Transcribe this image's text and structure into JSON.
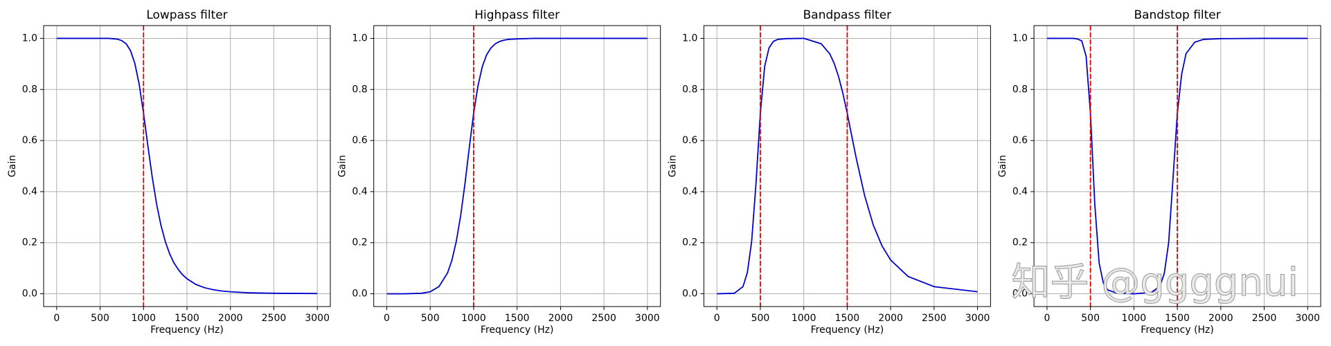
{
  "chart_data": [
    {
      "type": "line",
      "title": "Lowpass filter",
      "xlabel": "Frequency (Hz)",
      "ylabel": "Gain",
      "x": [
        0,
        200,
        400,
        500,
        600,
        700,
        750,
        800,
        850,
        900,
        950,
        1000,
        1050,
        1100,
        1150,
        1200,
        1250,
        1300,
        1350,
        1400,
        1450,
        1500,
        1600,
        1700,
        1800,
        1900,
        2000,
        2200,
        2500,
        3000
      ],
      "series": [
        {
          "color": "#0000cc",
          "values": [
            1,
            1,
            1,
            1,
            1,
            0.997,
            0.991,
            0.979,
            0.952,
            0.902,
            0.82,
            0.707,
            0.579,
            0.457,
            0.352,
            0.269,
            0.205,
            0.157,
            0.121,
            0.095,
            0.074,
            0.059,
            0.037,
            0.024,
            0.016,
            0.011,
            0.008,
            0.004,
            0.002,
            0.001
          ]
        }
      ],
      "cutoffs": [
        1000
      ],
      "cutoff_color": "#e00000",
      "xlim": [
        -150,
        3150
      ],
      "xticks": [
        0,
        500,
        1000,
        1500,
        2000,
        2500,
        3000
      ],
      "ylim": [
        -0.05,
        1.05
      ],
      "yticks": [
        {
          "value": 0,
          "label": "0.0"
        },
        {
          "value": 0.2,
          "label": "0.2"
        },
        {
          "value": 0.4,
          "label": "0.4"
        },
        {
          "value": 0.6,
          "label": "0.6"
        },
        {
          "value": 0.8,
          "label": "0.8"
        },
        {
          "value": 1,
          "label": "1.0"
        }
      ],
      "grid": true
    },
    {
      "type": "line",
      "title": "Highpass filter",
      "xlabel": "Frequency (Hz)",
      "ylabel": "Gain",
      "x": [
        0,
        200,
        400,
        500,
        600,
        700,
        750,
        800,
        850,
        900,
        950,
        1000,
        1050,
        1100,
        1150,
        1200,
        1250,
        1300,
        1350,
        1400,
        1450,
        1500,
        1600,
        1700,
        1800,
        1900,
        2000,
        2200,
        2500,
        3000
      ],
      "series": [
        {
          "color": "#0000cc",
          "values": [
            0,
            0,
            0.002,
            0.008,
            0.028,
            0.082,
            0.132,
            0.205,
            0.305,
            0.431,
            0.573,
            0.707,
            0.815,
            0.89,
            0.936,
            0.963,
            0.979,
            0.988,
            0.993,
            0.996,
            0.997,
            0.998,
            0.999,
            1,
            1,
            1,
            1,
            1,
            1,
            1
          ]
        }
      ],
      "cutoffs": [
        1000
      ],
      "cutoff_color": "#e00000",
      "xlim": [
        -150,
        3150
      ],
      "xticks": [
        0,
        500,
        1000,
        1500,
        2000,
        2500,
        3000
      ],
      "ylim": [
        -0.05,
        1.05
      ],
      "yticks": [
        {
          "value": 0,
          "label": "0.0"
        },
        {
          "value": 0.2,
          "label": "0.2"
        },
        {
          "value": 0.4,
          "label": "0.4"
        },
        {
          "value": 0.6,
          "label": "0.6"
        },
        {
          "value": 0.8,
          "label": "0.8"
        },
        {
          "value": 1,
          "label": "1.0"
        }
      ],
      "grid": true
    },
    {
      "type": "line",
      "title": "Bandpass filter",
      "xlabel": "Frequency (Hz)",
      "ylabel": "Gain",
      "x": [
        0,
        200,
        300,
        350,
        400,
        450,
        500,
        550,
        600,
        650,
        700,
        800,
        1000,
        1200,
        1300,
        1350,
        1400,
        1450,
        1500,
        1550,
        1600,
        1700,
        1800,
        1900,
        2000,
        2200,
        2500,
        3000
      ],
      "series": [
        {
          "color": "#0000cc",
          "values": [
            0,
            0.002,
            0.028,
            0.082,
            0.205,
            0.431,
            0.707,
            0.89,
            0.963,
            0.988,
            0.996,
            0.999,
            1,
            0.979,
            0.939,
            0.902,
            0.851,
            0.785,
            0.707,
            0.622,
            0.537,
            0.385,
            0.269,
            0.188,
            0.132,
            0.068,
            0.028,
            0.008
          ]
        }
      ],
      "cutoffs": [
        500,
        1500
      ],
      "cutoff_color": "#e00000",
      "xlim": [
        -150,
        3150
      ],
      "xticks": [
        0,
        500,
        1000,
        1500,
        2000,
        2500,
        3000
      ],
      "ylim": [
        -0.05,
        1.05
      ],
      "yticks": [
        {
          "value": 0,
          "label": "0.0"
        },
        {
          "value": 0.2,
          "label": "0.2"
        },
        {
          "value": 0.4,
          "label": "0.4"
        },
        {
          "value": 0.6,
          "label": "0.6"
        },
        {
          "value": 0.8,
          "label": "0.8"
        },
        {
          "value": 1,
          "label": "1.0"
        }
      ],
      "grid": true
    },
    {
      "type": "line",
      "title": "Bandstop filter",
      "xlabel": "Frequency (Hz)",
      "ylabel": "Gain",
      "x": [
        0,
        200,
        300,
        350,
        400,
        450,
        500,
        550,
        600,
        650,
        700,
        800,
        1000,
        1200,
        1300,
        1350,
        1400,
        1450,
        1500,
        1550,
        1600,
        1700,
        1800,
        2000,
        2500,
        3000
      ],
      "series": [
        {
          "color": "#0000cc",
          "values": [
            1,
            1,
            1,
            0.998,
            0.99,
            0.93,
            0.707,
            0.35,
            0.12,
            0.04,
            0.015,
            0.003,
            0,
            0.005,
            0.03,
            0.08,
            0.2,
            0.45,
            0.707,
            0.86,
            0.94,
            0.985,
            0.996,
            0.999,
            1,
            1
          ]
        }
      ],
      "cutoffs": [
        500,
        1500
      ],
      "cutoff_color": "#e00000",
      "xlim": [
        -150,
        3150
      ],
      "xticks": [
        0,
        500,
        1000,
        1500,
        2000,
        2500,
        3000
      ],
      "ylim": [
        -0.05,
        1.05
      ],
      "yticks": [
        {
          "value": 0,
          "label": "0.0"
        },
        {
          "value": 0.2,
          "label": "0.2"
        },
        {
          "value": 0.4,
          "label": "0.4"
        },
        {
          "value": 0.6,
          "label": "0.6"
        },
        {
          "value": 0.8,
          "label": "0.8"
        },
        {
          "value": 1,
          "label": "1.0"
        }
      ],
      "grid": true
    }
  ],
  "watermark": "知乎 @ggggnui"
}
